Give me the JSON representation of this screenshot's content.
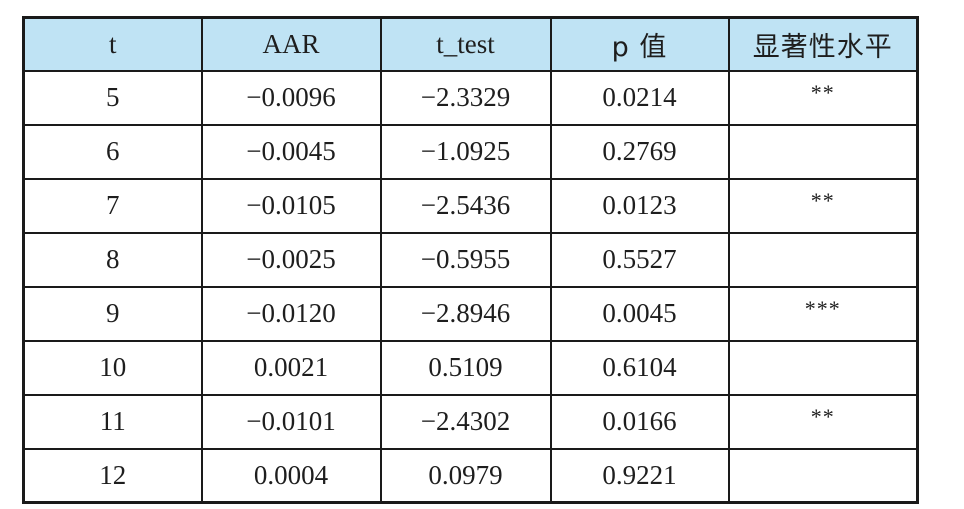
{
  "table": {
    "headers": [
      "t",
      "AAR",
      "t_test",
      "p 值",
      "显著性水平"
    ],
    "rows": [
      {
        "t": "5",
        "aar": "−0.0096",
        "t_test": "−2.3329",
        "p": "0.0214",
        "sig": "**"
      },
      {
        "t": "6",
        "aar": "−0.0045",
        "t_test": "−1.0925",
        "p": "0.2769",
        "sig": ""
      },
      {
        "t": "7",
        "aar": "−0.0105",
        "t_test": "−2.5436",
        "p": "0.0123",
        "sig": "**"
      },
      {
        "t": "8",
        "aar": "−0.0025",
        "t_test": "−0.5955",
        "p": "0.5527",
        "sig": ""
      },
      {
        "t": "9",
        "aar": "−0.0120",
        "t_test": "−2.8946",
        "p": "0.0045",
        "sig": "***"
      },
      {
        "t": "10",
        "aar": "0.0021",
        "t_test": "0.5109",
        "p": "0.6104",
        "sig": ""
      },
      {
        "t": "11",
        "aar": "−0.0101",
        "t_test": "−2.4302",
        "p": "0.0166",
        "sig": "**"
      },
      {
        "t": "12",
        "aar": "0.0004",
        "t_test": "0.0979",
        "p": "0.9221",
        "sig": ""
      }
    ]
  },
  "colors": {
    "header_background": "#bfe3f4",
    "border": "#1a1a1a",
    "text": "#1e1e1e"
  }
}
